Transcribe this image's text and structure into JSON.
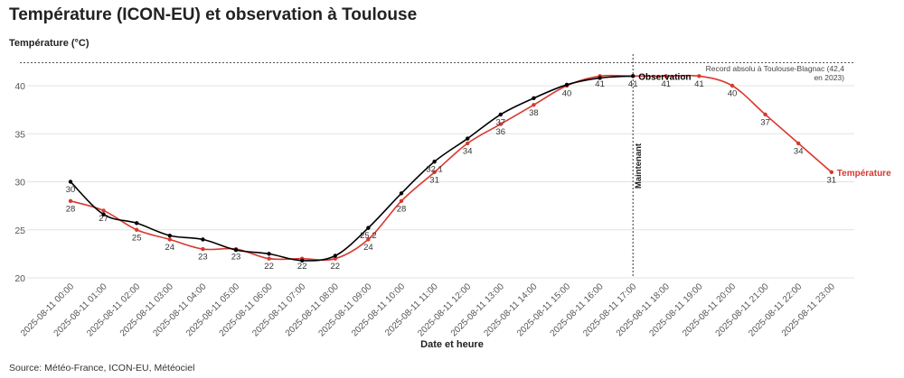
{
  "title": "Température (ICON-EU) et observation à Toulouse",
  "source": "Source: Météo-France, ICON-EU, Météociel",
  "colors": {
    "forecast": "#d9382f",
    "observation": "#000000",
    "grid": "#e3e3e3",
    "axis_text": "#555555"
  },
  "chart_data": {
    "type": "line",
    "ylabel": "Température (°C)",
    "xlabel": "Date et heure",
    "ylim": [
      20,
      42.5
    ],
    "yticks": [
      20,
      25,
      30,
      35,
      40
    ],
    "grid": true,
    "x": [
      "2025-08-11 00:00",
      "2025-08-11 01:00",
      "2025-08-11 02:00",
      "2025-08-11 03:00",
      "2025-08-11 04:00",
      "2025-08-11 05:00",
      "2025-08-11 06:00",
      "2025-08-11 07:00",
      "2025-08-11 08:00",
      "2025-08-11 09:00",
      "2025-08-11 10:00",
      "2025-08-11 11:00",
      "2025-08-11 12:00",
      "2025-08-11 13:00",
      "2025-08-11 14:00",
      "2025-08-11 15:00",
      "2025-08-11 16:00",
      "2025-08-11 17:00",
      "2025-08-11 18:00",
      "2025-08-11 19:00",
      "2025-08-11 20:00",
      "2025-08-11 21:00",
      "2025-08-11 22:00",
      "2025-08-11 23:00"
    ],
    "series": [
      {
        "name": "Température",
        "color": "#d9382f",
        "values": [
          28,
          27,
          25,
          24,
          23,
          23,
          22,
          22,
          22,
          24,
          28,
          31,
          34,
          36,
          38,
          40,
          41,
          41,
          41,
          41,
          40,
          37,
          34,
          31
        ],
        "labels": [
          "28",
          "27",
          "25",
          "24",
          "23",
          "23",
          "22",
          "22",
          "22",
          "24",
          "28",
          "31",
          "34",
          "36",
          "38",
          "40",
          "41",
          "41",
          "41",
          "41",
          "40",
          "37",
          "34",
          "31"
        ]
      },
      {
        "name": "Observation",
        "color": "#000000",
        "values": [
          30,
          26.6,
          25.7,
          24.4,
          24,
          22.9,
          22.5,
          21.8,
          22.3,
          25.2,
          28.8,
          32.1,
          34.5,
          37,
          38.7,
          40.1,
          40.8,
          41,
          null,
          null,
          null,
          null,
          null,
          null
        ],
        "labels": [
          "30",
          "",
          "",
          "",
          "",
          "",
          "",
          "",
          "",
          "25.2",
          "",
          "32.1",
          "",
          "37",
          "",
          "",
          "",
          "",
          "",
          "",
          "",
          "",
          "",
          ""
        ]
      }
    ],
    "annotations": {
      "record": {
        "value": 42.4,
        "text_line1": "Record absolu à Toulouse-Blagnac (42,4",
        "text_line2": "en 2023)"
      },
      "now": {
        "x": "2025-08-11 17:00",
        "text": "Maintenant"
      }
    }
  }
}
